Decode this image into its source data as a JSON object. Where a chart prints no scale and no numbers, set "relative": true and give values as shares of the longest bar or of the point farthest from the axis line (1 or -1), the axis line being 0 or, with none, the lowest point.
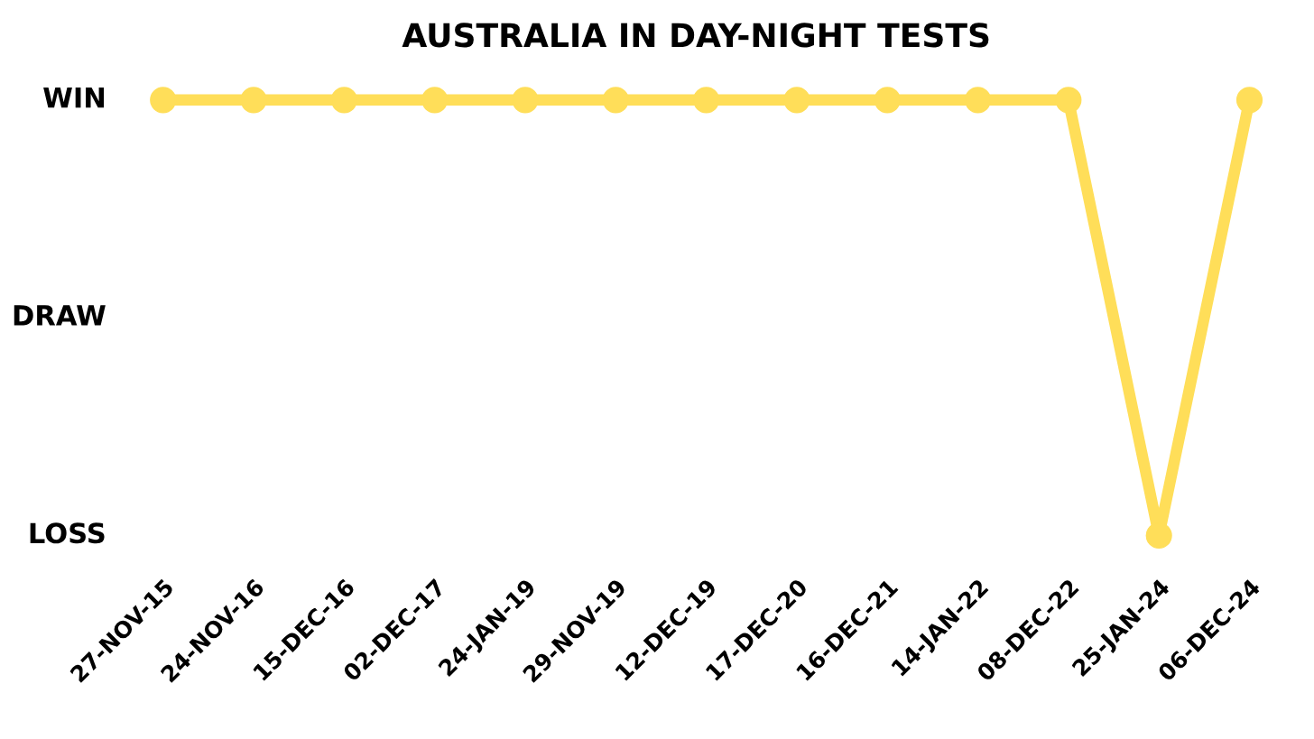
{
  "chart_data": {
    "type": "line",
    "title": "AUSTRALIA IN DAY-NIGHT TESTS",
    "categories": [
      "27-NOV-15",
      "24-NOV-16",
      "15-DEC-16",
      "02-DEC-17",
      "24-JAN-19",
      "29-NOV-19",
      "12-DEC-19",
      "17-DEC-20",
      "16-DEC-21",
      "14-JAN-22",
      "08-DEC-22",
      "25-JAN-24",
      "06-DEC-24"
    ],
    "series": [
      {
        "color": "#ffde59",
        "values": [
          1,
          1,
          1,
          1,
          1,
          1,
          1,
          1,
          1,
          1,
          1,
          0,
          1
        ]
      }
    ],
    "relative": true,
    "annotations": [
      "WIN",
      "DRAW",
      "LOSS"
    ],
    "marker": "circle",
    "line_style": "solid",
    "grid": false
  }
}
